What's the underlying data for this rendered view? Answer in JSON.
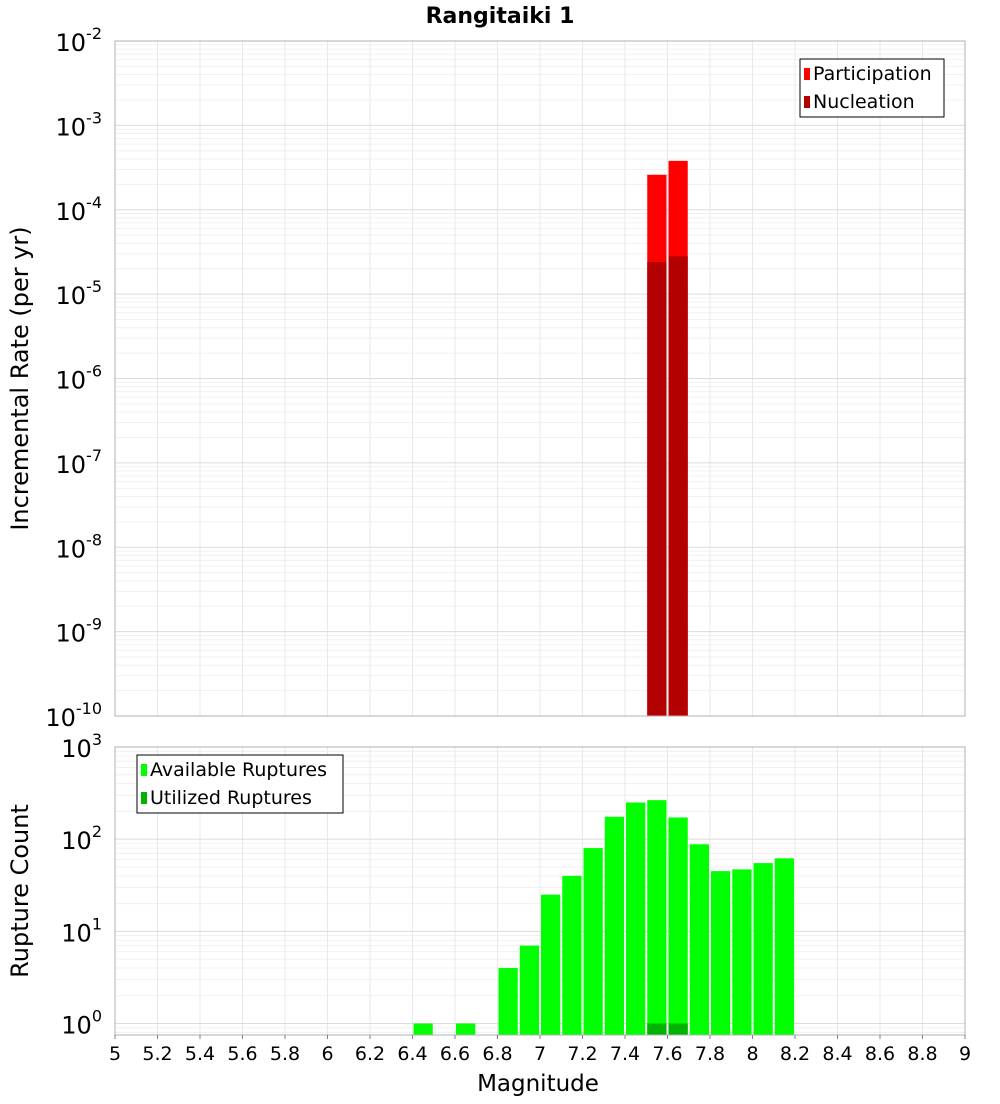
{
  "title": "Rangitaiki 1",
  "chart_data": [
    {
      "type": "bar",
      "title": "Rangitaiki 1",
      "ylabel": "Incremental Rate (per yr)",
      "xlabel": "",
      "y_scale": "log",
      "ylim": [
        1e-10,
        0.01
      ],
      "xlim": [
        5,
        9
      ],
      "y_tick_labels": [
        {
          "base": "10",
          "exp": "-10",
          "value": 1e-10
        },
        {
          "base": "10",
          "exp": "-9",
          "value": 1e-09
        },
        {
          "base": "10",
          "exp": "-8",
          "value": 1e-08
        },
        {
          "base": "10",
          "exp": "-7",
          "value": 1e-07
        },
        {
          "base": "10",
          "exp": "-6",
          "value": 1e-06
        },
        {
          "base": "10",
          "exp": "-5",
          "value": 1e-05
        },
        {
          "base": "10",
          "exp": "-4",
          "value": 0.0001
        },
        {
          "base": "10",
          "exp": "-3",
          "value": 0.001
        },
        {
          "base": "10",
          "exp": "-2",
          "value": 0.01
        }
      ],
      "grid": true,
      "legend_position": "top-right",
      "series": [
        {
          "name": "Participation",
          "color": "#ff0000",
          "x": [
            7.55,
            7.65
          ],
          "values": [
            0.00026,
            0.00038
          ]
        },
        {
          "name": "Nucleation",
          "color": "#b30000",
          "x": [
            7.55,
            7.65
          ],
          "values": [
            2.4e-05,
            2.8e-05
          ]
        }
      ]
    },
    {
      "type": "bar",
      "title": "",
      "ylabel": "Rupture Count",
      "xlabel": "Magnitude",
      "y_scale": "log",
      "ylim": [
        0.75,
        1000
      ],
      "xlim": [
        5,
        9
      ],
      "y_tick_labels": [
        {
          "base": "10",
          "exp": "0",
          "value": 1
        },
        {
          "base": "10",
          "exp": "1",
          "value": 10
        },
        {
          "base": "10",
          "exp": "2",
          "value": 100
        },
        {
          "base": "10",
          "exp": "3",
          "value": 1000
        }
      ],
      "x_tick_labels": [
        "5",
        "5.2",
        "5.4",
        "5.6",
        "5.8",
        "6",
        "6.2",
        "6.4",
        "6.6",
        "6.8",
        "7",
        "7.2",
        "7.4",
        "7.6",
        "7.8",
        "8",
        "8.2",
        "8.4",
        "8.6",
        "8.8",
        "9"
      ],
      "grid": true,
      "legend_position": "top-left",
      "series": [
        {
          "name": "Available Ruptures",
          "color": "#00ff00",
          "x": [
            6.45,
            6.65,
            6.85,
            6.95,
            7.05,
            7.15,
            7.25,
            7.35,
            7.45,
            7.55,
            7.65,
            7.75,
            7.85,
            7.95,
            8.05,
            8.15
          ],
          "values": [
            1,
            1,
            4,
            7,
            25,
            40,
            80,
            175,
            250,
            265,
            172,
            88,
            45,
            47,
            55,
            62
          ]
        },
        {
          "name": "Utilized Ruptures",
          "color": "#00b300",
          "x": [
            7.55,
            7.65
          ],
          "values": [
            1,
            1
          ]
        }
      ]
    }
  ]
}
